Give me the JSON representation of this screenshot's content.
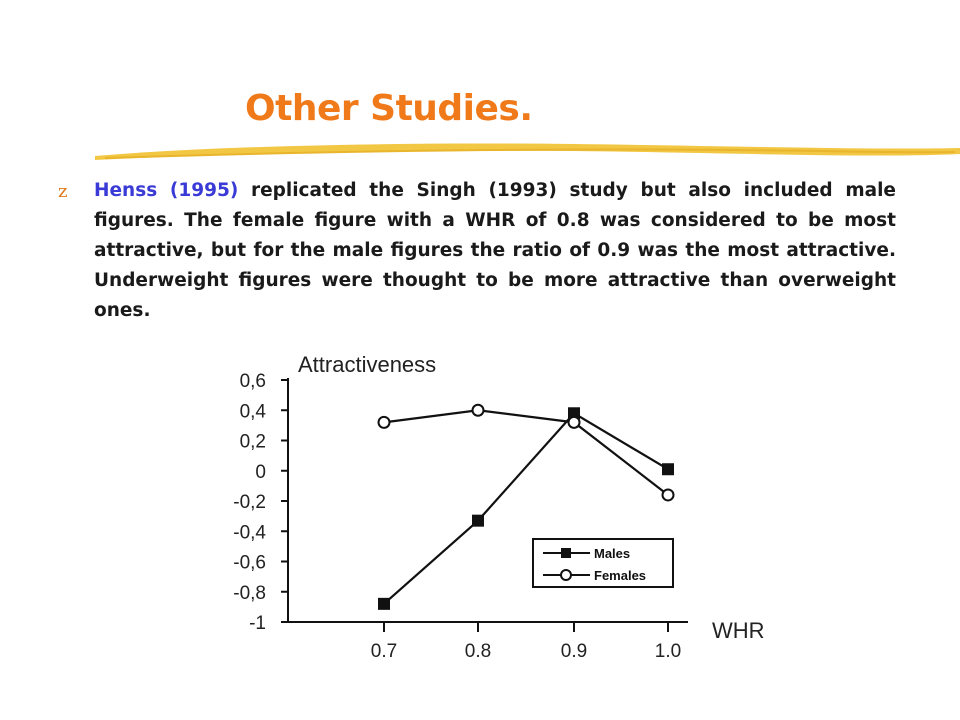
{
  "slide": {
    "title": "Other Studies.",
    "bullet_glyph": "z",
    "paragraph": {
      "citation": "Henss (1995)",
      "text": " replicated the Singh (1993) study but also included male figures. The female figure with a WHR of 0.8 was considered to be most attractive, but for the male figures the ratio of 0.9 was the most attractive. Underweight figures were thought to be more attractive than overweight ones."
    },
    "accent_color": "#f07a19",
    "citation_color": "#3a3ad6",
    "underline_color": "#f2c744"
  },
  "chart_data": {
    "type": "line",
    "ylabel": "Attractiveness",
    "xlabel": "WHR",
    "categories": [
      "0.7",
      "0.8",
      "0.9",
      "1.0"
    ],
    "yticks": [
      "0,6",
      "0,4",
      "0,2",
      "0",
      "-0,2",
      "-0,4",
      "-0,6",
      "-0,8",
      "-1"
    ],
    "ylim": [
      -1,
      0.6
    ],
    "series": [
      {
        "name": "Males",
        "marker": "filled-square",
        "values": [
          -0.88,
          -0.33,
          0.38,
          0.01
        ]
      },
      {
        "name": "Females",
        "marker": "open-circle",
        "values": [
          0.32,
          0.4,
          0.32,
          -0.16
        ]
      }
    ],
    "legend_position": "bottom-right",
    "grid": false
  }
}
